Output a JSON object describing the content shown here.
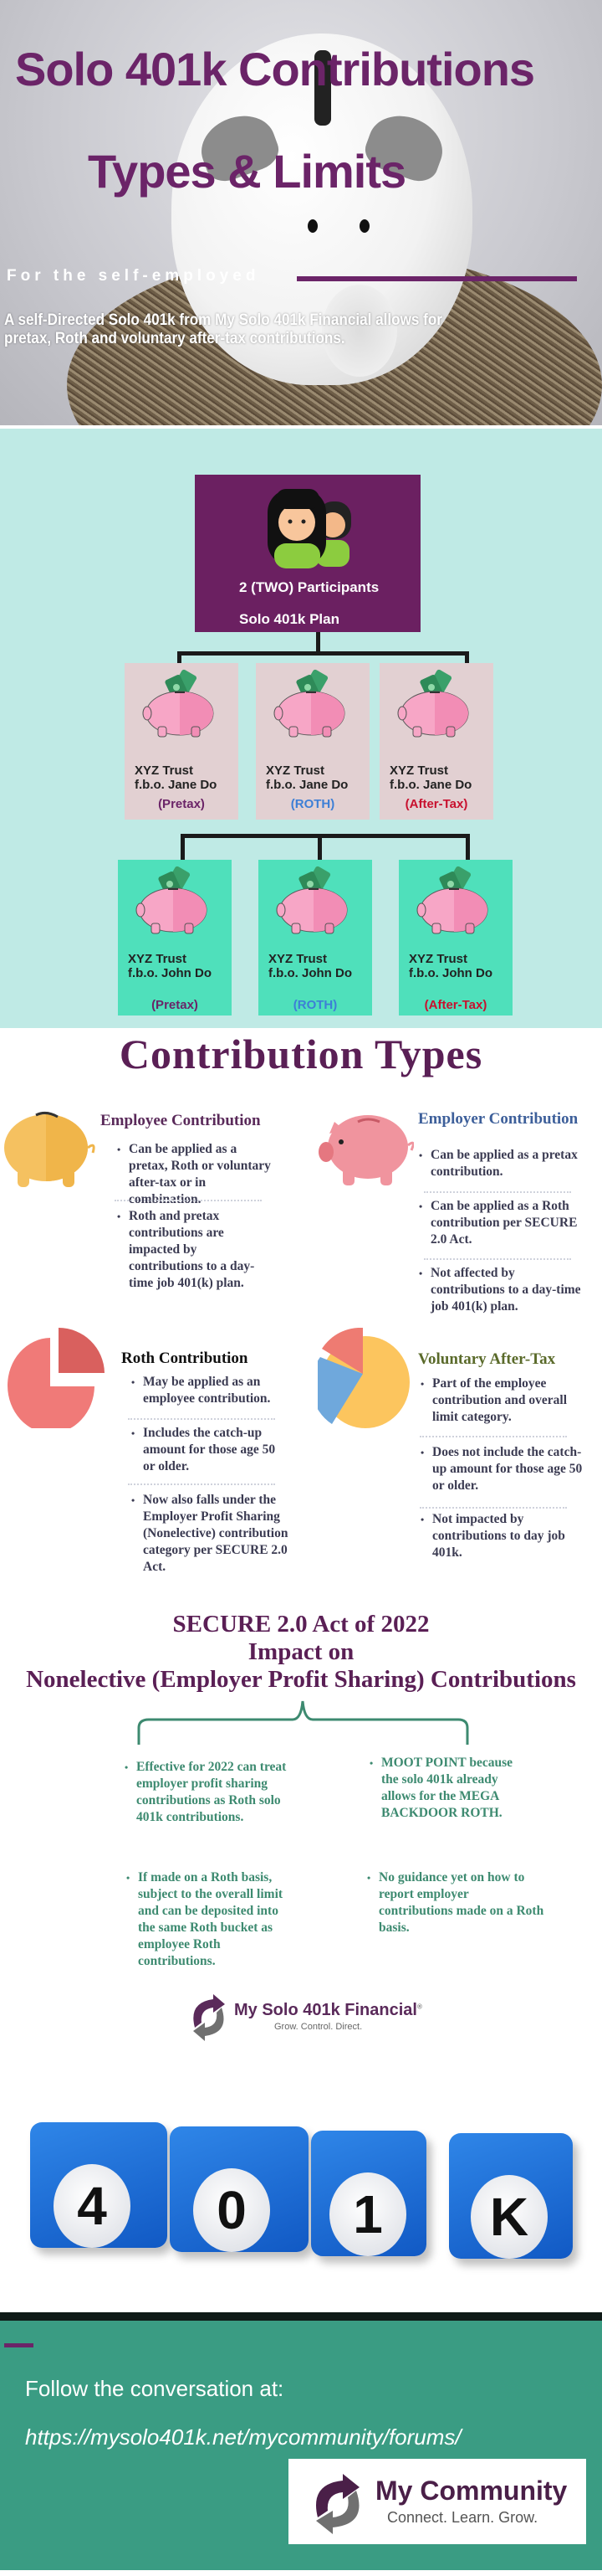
{
  "hero": {
    "title_line1": "Solo 401k Contributions",
    "title_line2": "Types & Limits",
    "tagline": "For the self-employed",
    "description": "A self-Directed Solo 401k from My Solo 401k Financial allows for pretax, Roth and voluntary after-tax contributions."
  },
  "diagram": {
    "participants": "2 (TWO) Participants",
    "plan": "Solo 401k Plan",
    "jane": [
      {
        "trust": "XYZ Trust",
        "fbo": "f.b.o. Jane Do",
        "type": "(Pretax)"
      },
      {
        "trust": "XYZ Trust",
        "fbo": "f.b.o. Jane Do",
        "type": "(ROTH)"
      },
      {
        "trust": "XYZ Trust",
        "fbo": "f.b.o. Jane Do",
        "type": "(After-Tax)"
      }
    ],
    "john": [
      {
        "trust": "XYZ Trust",
        "fbo": "f.b.o. John Do",
        "type": "(Pretax)"
      },
      {
        "trust": "XYZ Trust",
        "fbo": "f.b.o. John Do",
        "type": "(ROTH)"
      },
      {
        "trust": "XYZ Trust",
        "fbo": "f.b.o. John Do",
        "type": "(After-Tax)"
      }
    ],
    "type_colors": {
      "pretax": "#6b2468",
      "roth": "#3d7fd6",
      "aftertax": "#c8102e"
    }
  },
  "contribution_types": {
    "title": "Contribution Types",
    "employee": {
      "heading": "Employee Contribution",
      "bullets": [
        "Can be applied as a pretax, Roth or voluntary after-tax or in combination.",
        "Roth and pretax contributions are impacted by contributions to a day-time job 401(k) plan."
      ]
    },
    "employer": {
      "heading": "Employer Contribution",
      "bullets": [
        "Can be applied as a pretax contribution.",
        "Can be applied as a Roth contribution per SECURE 2.0 Act.",
        "Not affected by contributions to a day-time job 401(k) plan."
      ]
    },
    "roth": {
      "heading": "Roth Contribution",
      "bullets": [
        "May be applied as an employee contribution.",
        "Includes the catch-up amount for those age 50 or older.",
        "Now also falls under the Employer Profit Sharing (Nonelective) contribution category per SECURE 2.0 Act."
      ]
    },
    "voluntary": {
      "heading": "Voluntary After-Tax",
      "bullets": [
        "Part of the employee contribution and overall limit category.",
        "Does not include the catch-up amount for those age 50 or older.",
        "Not impacted by contributions to day job 401k."
      ]
    }
  },
  "secure": {
    "line1": "SECURE 2.0 Act of 2022",
    "line2": "Impact on",
    "line3": "Nonelective (Employer Profit Sharing) Contributions",
    "bullets": [
      "Effective for 2022 can treat employer profit sharing contributions as Roth solo 401k contributions.",
      "MOOT POINT because the solo 401k already allows for the MEGA BACKDOOR ROTH.",
      "If made on a Roth basis, subject to the overall limit and can be deposited into the same Roth bucket as employee Roth contributions.",
      "No guidance yet on how to report employer contributions made on a Roth basis."
    ]
  },
  "logo": {
    "name": "My Solo 401k Financial",
    "reg": "®",
    "tagline": "Grow. Control. Direct."
  },
  "cubes": [
    "4",
    "0",
    "1",
    "K"
  ],
  "footer": {
    "follow": "Follow the conversation at:",
    "url": "https://mysolo401k.net/mycommunity/forums/",
    "community_name": "My Community",
    "community_tagline": "Connect. Learn. Grow."
  }
}
